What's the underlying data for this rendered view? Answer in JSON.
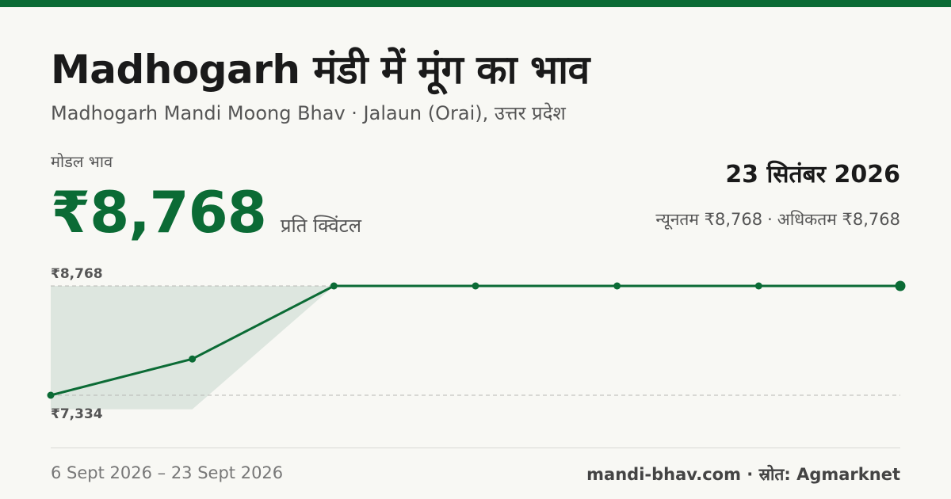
{
  "header": {
    "title": "Madhogarh मंडी में मूंग का भाव",
    "subtitle": "Madhogarh Mandi Moong Bhav · Jalaun (Orai), उत्तर प्रदेश"
  },
  "price": {
    "label": "मोडल भाव",
    "value": "₹8,768",
    "unit": "प्रति क्विंटल"
  },
  "summary": {
    "date": "23 सितंबर 2026",
    "min_text": "न्यूनतम ₹8,768",
    "separator": "·",
    "max_text": "अधिकतम ₹8,768"
  },
  "footer": {
    "period": "6 Sept 2026 – 23 Sept 2026",
    "source": "mandi-bhav.com · स्रोत: Agmarknet"
  },
  "colors": {
    "accent": "#0b6b35",
    "band": "#dde6df",
    "background": "#f8f8f4"
  },
  "chart_data": {
    "type": "line",
    "values": [
      7334,
      7810,
      8768,
      8768,
      8768,
      8768,
      8768
    ],
    "band_low": [
      7150,
      7150,
      8768,
      8768,
      8768,
      8768,
      8768
    ],
    "band_high": [
      8768,
      8768,
      8768,
      8768,
      8768,
      8768,
      8768
    ],
    "ylim": [
      7334,
      8768
    ],
    "reference_lines": [
      {
        "value": 8768,
        "label": "₹8,768"
      },
      {
        "value": 7334,
        "label": "₹7,334"
      }
    ],
    "grid": false,
    "legend": "none"
  }
}
